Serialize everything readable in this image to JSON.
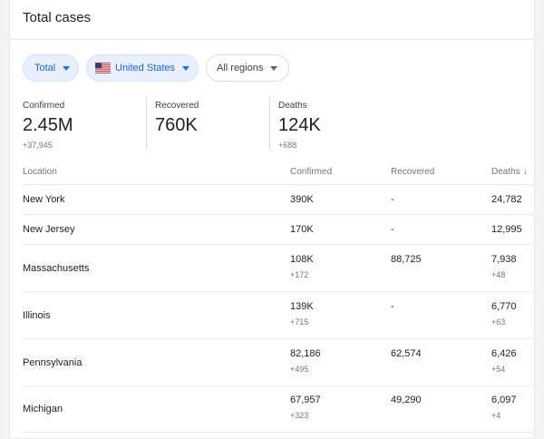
{
  "card": {
    "title": "Total cases"
  },
  "filters": {
    "metric": "Total",
    "country": "United States",
    "region": "All regions"
  },
  "stats": [
    {
      "label": "Confirmed",
      "value": "2.45M",
      "delta": "+37,945"
    },
    {
      "label": "Recovered",
      "value": "760K",
      "delta": ""
    },
    {
      "label": "Deaths",
      "value": "124K",
      "delta": "+688"
    }
  ],
  "table": {
    "headers": {
      "location": "Location",
      "confirmed": "Confirmed",
      "recovered": "Recovered",
      "deaths": "Deaths"
    },
    "sort": {
      "column": "deaths",
      "direction": "descending",
      "icon": "arrow-down-icon"
    },
    "rows": [
      {
        "location": "New York",
        "confirmed": "390K",
        "confirmed_delta": "",
        "recovered": "-",
        "deaths": "24,782",
        "deaths_delta": ""
      },
      {
        "location": "New Jersey",
        "confirmed": "170K",
        "confirmed_delta": "",
        "recovered": "-",
        "deaths": "12,995",
        "deaths_delta": ""
      },
      {
        "location": "Massachusetts",
        "confirmed": "108K",
        "confirmed_delta": "+172",
        "recovered": "88,725",
        "deaths": "7,938",
        "deaths_delta": "+48"
      },
      {
        "location": "Illinois",
        "confirmed": "139K",
        "confirmed_delta": "+715",
        "recovered": "-",
        "deaths": "6,770",
        "deaths_delta": "+63"
      },
      {
        "location": "Pennsylvania",
        "confirmed": "82,186",
        "confirmed_delta": "+495",
        "recovered": "62,574",
        "deaths": "6,426",
        "deaths_delta": "+54"
      },
      {
        "location": "Michigan",
        "confirmed": "67,957",
        "confirmed_delta": "+323",
        "recovered": "49,290",
        "deaths": "6,097",
        "deaths_delta": "+4"
      }
    ]
  },
  "colors": {
    "accent": "#1a73e8",
    "chip_selected_bg": "#e8f0fe",
    "muted_text": "#70757a",
    "divider": "#e8eaed"
  }
}
